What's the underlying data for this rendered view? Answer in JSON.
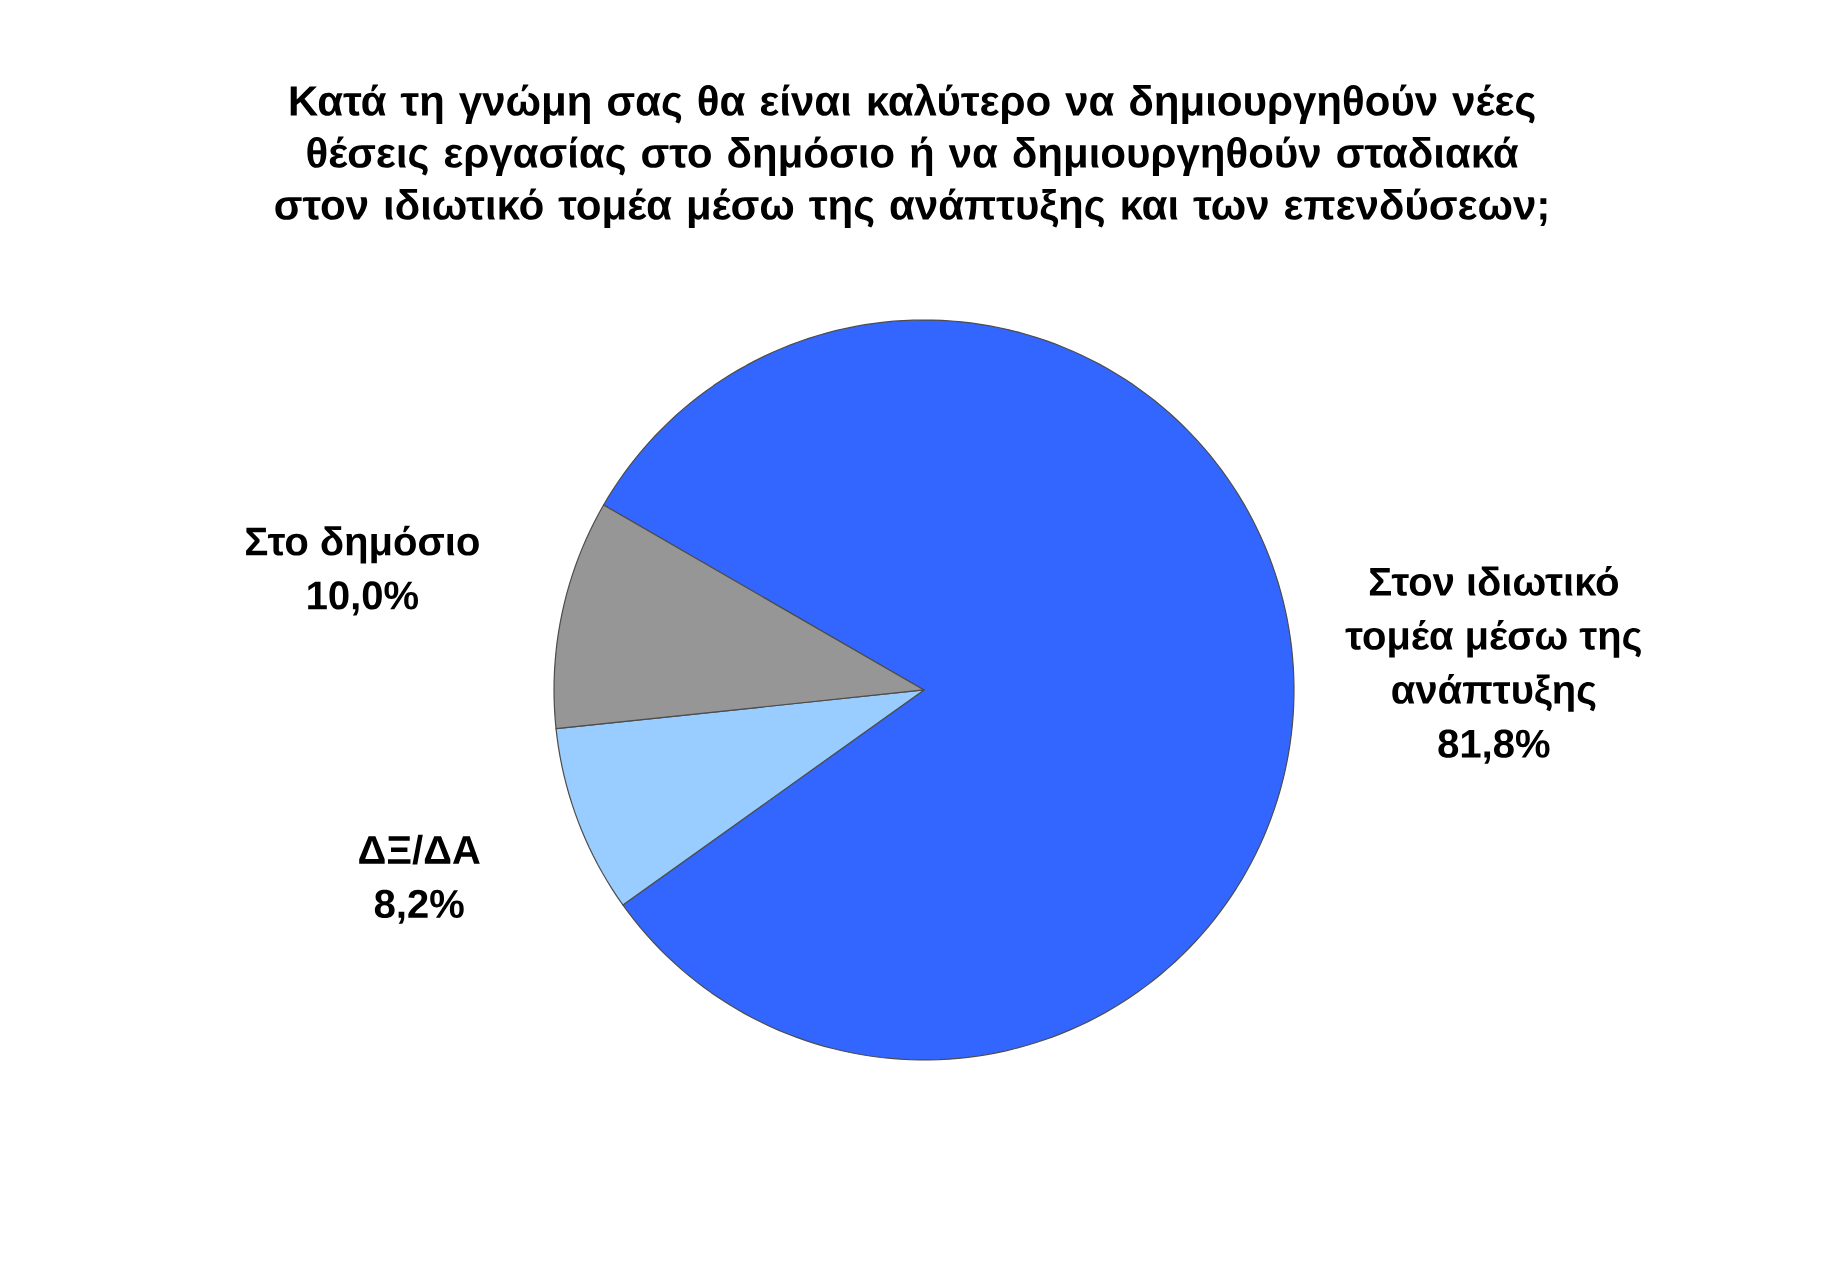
{
  "chart_data": {
    "type": "pie",
    "title": "Κατά τη γνώμη σας θα είναι καλύτερο να δημιουργηθούν νέες θέσεις εργασίας στο δημόσιο ή να δημιουργηθούν σταδιακά στον ιδιωτικό τομέα μέσω της ανάπτυξης και των επενδύσεων;",
    "categories": [
      "Στον ιδιωτικό τομέα μέσω της ανάπτυξης",
      "ΔΞ/ΔΑ",
      "Στο δημόσιο"
    ],
    "values": [
      81.8,
      8.2,
      10.0
    ],
    "value_labels": [
      "81,8%",
      "8,2%",
      "10,0%"
    ],
    "colors": [
      "#3366ff",
      "#99ccff",
      "#969696"
    ]
  }
}
